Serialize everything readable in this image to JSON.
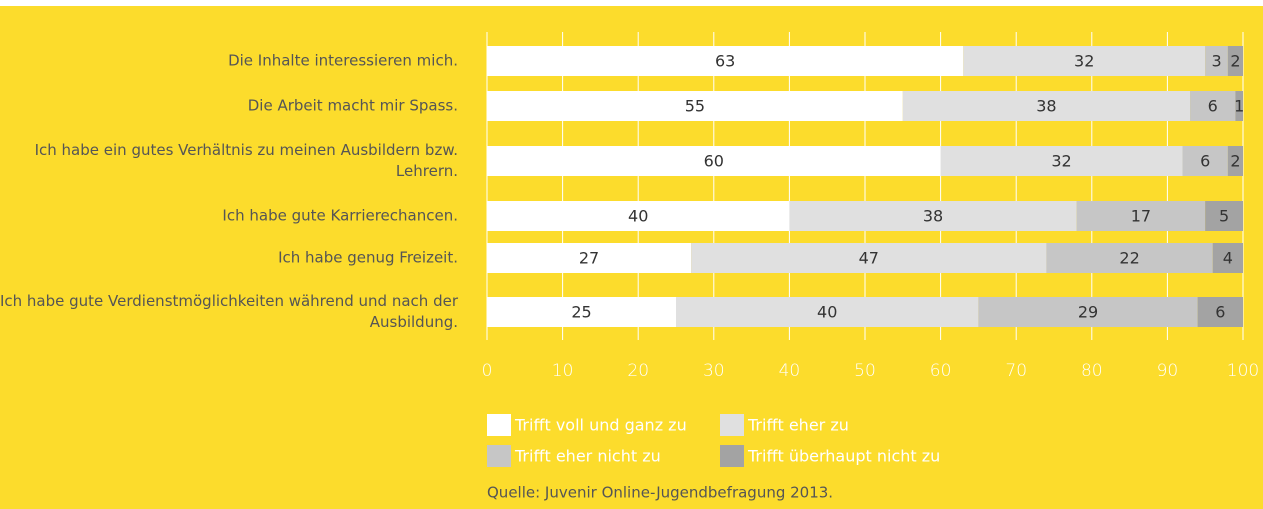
{
  "chart_data": {
    "type": "stacked-barh",
    "categories": [
      "Die Inhalte interessieren mich.",
      "Die Arbeit macht mir Spass.",
      "Ich habe ein gutes Verhältnis zu meinen Ausbildern bzw. Lehrern.",
      "Ich habe gute Karrierechancen.",
      "Ich habe genug Freizeit.",
      "Ich habe gute Verdienstmöglichkeiten während und nach der Ausbildung."
    ],
    "series": [
      {
        "name": "Trifft voll und ganz zu",
        "color": "#ffffff",
        "values": [
          63,
          55,
          60,
          40,
          27,
          25
        ]
      },
      {
        "name": "Trifft eher zu",
        "color": "#e0e0e0",
        "values": [
          32,
          38,
          32,
          38,
          47,
          40
        ]
      },
      {
        "name": "Trifft eher nicht zu",
        "color": "#c6c6c6",
        "values": [
          3,
          6,
          6,
          17,
          22,
          29
        ]
      },
      {
        "name": "Trifft überhaupt nicht zu",
        "color": "#a3a3a3",
        "values": [
          2,
          1,
          2,
          5,
          4,
          6
        ]
      }
    ],
    "xlim": [
      0,
      100
    ],
    "xticks": [
      0,
      10,
      20,
      30,
      40,
      50,
      60,
      70,
      80,
      90,
      100
    ],
    "grid": true,
    "source": "Quelle: Juvenir Online-Jugendbefragung 2013."
  }
}
